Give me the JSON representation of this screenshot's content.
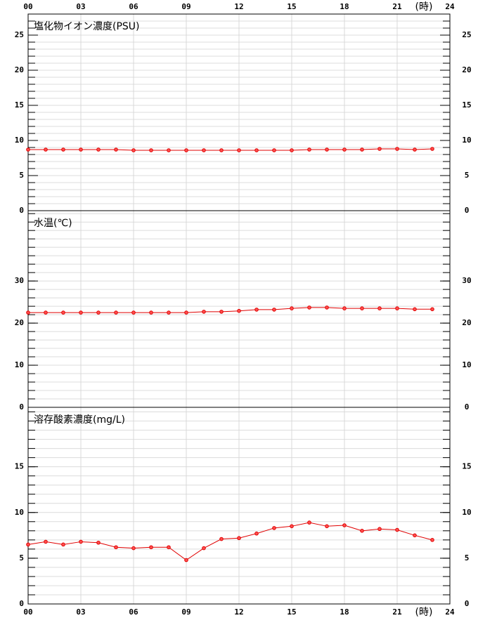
{
  "chart_data": [
    {
      "type": "line",
      "title": "塩化物イオン濃度(PSU)",
      "x_unit": "(時)",
      "x": [
        0,
        1,
        2,
        3,
        4,
        5,
        6,
        7,
        8,
        9,
        10,
        11,
        12,
        13,
        14,
        15,
        16,
        17,
        18,
        19,
        20,
        21,
        22,
        23
      ],
      "xlim": [
        0,
        24
      ],
      "xticks": [
        {
          "value": 0,
          "label": "00"
        },
        {
          "value": 3,
          "label": "03"
        },
        {
          "value": 6,
          "label": "06"
        },
        {
          "value": 9,
          "label": "09"
        },
        12,
        15,
        18,
        21,
        24
      ],
      "ylim": [
        0,
        28
      ],
      "yticks": [
        0,
        5,
        10,
        15,
        20,
        25
      ],
      "minor_step": 1,
      "series": [
        {
          "color": "#e00000",
          "values": [
            8.7,
            8.7,
            8.7,
            8.7,
            8.7,
            8.7,
            8.6,
            8.6,
            8.6,
            8.6,
            8.6,
            8.6,
            8.6,
            8.6,
            8.6,
            8.6,
            8.7,
            8.7,
            8.7,
            8.7,
            8.8,
            8.8,
            8.7,
            8.8
          ]
        }
      ]
    },
    {
      "type": "line",
      "title": "水温(℃)",
      "x": [
        0,
        1,
        2,
        3,
        4,
        5,
        6,
        7,
        8,
        9,
        10,
        11,
        12,
        13,
        14,
        15,
        16,
        17,
        18,
        19,
        20,
        21,
        22,
        23
      ],
      "xlim": [
        0,
        24
      ],
      "xticks": [
        {
          "value": 0,
          "label": "00"
        },
        {
          "value": 3,
          "label": "03"
        },
        {
          "value": 6,
          "label": "06"
        },
        {
          "value": 9,
          "label": "09"
        },
        12,
        15,
        18,
        21,
        24
      ],
      "ylim": [
        0,
        46.7
      ],
      "yticks": [
        0,
        10,
        20,
        30
      ],
      "minor_step": 2,
      "series": [
        {
          "color": "#e00000",
          "values": [
            22.5,
            22.5,
            22.5,
            22.5,
            22.5,
            22.5,
            22.5,
            22.5,
            22.5,
            22.5,
            22.7,
            22.7,
            22.9,
            23.2,
            23.2,
            23.5,
            23.7,
            23.7,
            23.5,
            23.5,
            23.5,
            23.5,
            23.3,
            23.3
          ]
        }
      ]
    },
    {
      "type": "line",
      "title": "溶存酸素濃度(mg/L)",
      "x_unit": "(時)",
      "x": [
        0,
        1,
        2,
        3,
        4,
        5,
        6,
        7,
        8,
        9,
        10,
        11,
        12,
        13,
        14,
        15,
        16,
        17,
        18,
        19,
        20,
        21,
        22,
        23
      ],
      "xlim": [
        0,
        24
      ],
      "xticks": [
        {
          "value": 0,
          "label": "00"
        },
        {
          "value": 3,
          "label": "03"
        },
        {
          "value": 6,
          "label": "06"
        },
        {
          "value": 9,
          "label": "09"
        },
        12,
        15,
        18,
        21,
        24
      ],
      "ylim": [
        0,
        21.5
      ],
      "yticks": [
        0,
        5,
        10,
        15
      ],
      "minor_step": 1,
      "series": [
        {
          "color": "#e00000",
          "values": [
            6.5,
            6.8,
            6.5,
            6.8,
            6.7,
            6.2,
            6.1,
            6.2,
            6.2,
            4.8,
            6.1,
            7.1,
            7.2,
            7.7,
            8.3,
            8.5,
            8.9,
            8.5,
            8.6,
            8.0,
            8.2,
            8.1,
            7.5,
            7.0
          ]
        }
      ]
    }
  ]
}
